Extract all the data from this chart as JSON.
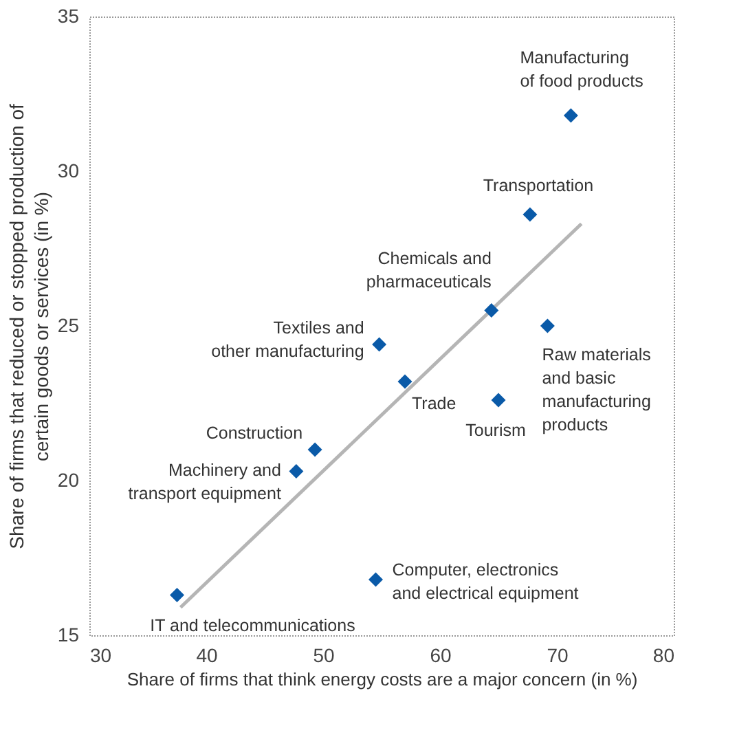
{
  "chart_data": {
    "type": "scatter",
    "xlabel": "Share of firms that think energy costs are a major concern (in %)",
    "ylabel": "Share of firms that reduced or stopped production of\ncertain goods or services (in %)",
    "xlim": [
      30,
      80
    ],
    "ylim": [
      15,
      35
    ],
    "xticks": [
      30,
      40,
      50,
      60,
      70,
      80
    ],
    "yticks": [
      15,
      20,
      25,
      30,
      35
    ],
    "grid": false,
    "series": [
      {
        "marker": "diamond",
        "color": "#0a5aa8",
        "x": [
          37.5,
          54.5,
          47.7,
          49.3,
          57.0,
          54.8,
          64.4,
          65.0,
          69.2,
          67.7,
          71.2
        ],
        "values": [
          16.3,
          16.8,
          20.3,
          21.0,
          23.2,
          24.4,
          25.5,
          22.6,
          25.0,
          28.6,
          31.8
        ]
      },
      {
        "type": "line",
        "line_style": "solid",
        "color": "#b5b5b5",
        "x": [
          37.8,
          72.1
        ],
        "values": [
          15.9,
          28.3
        ]
      }
    ],
    "annotations": [
      {
        "text": "IT and telecommunications",
        "x": 37.5,
        "y": 16.3
      },
      {
        "text": "Computer, electronics\nand electrical equipment",
        "x": 54.5,
        "y": 16.8
      },
      {
        "text": "Machinery and\ntransport equipment",
        "x": 47.7,
        "y": 20.3
      },
      {
        "text": "Construction",
        "x": 49.3,
        "y": 21.0
      },
      {
        "text": "Trade",
        "x": 57.0,
        "y": 23.2
      },
      {
        "text": "Textiles and\nother manufacturing",
        "x": 54.8,
        "y": 24.4
      },
      {
        "text": "Chemicals and\npharmaceuticals",
        "x": 64.4,
        "y": 25.5
      },
      {
        "text": "Tourism",
        "x": 65.0,
        "y": 22.6
      },
      {
        "text": "Raw materials\nand basic\nmanufacturing\nproducts",
        "x": 69.2,
        "y": 25.0
      },
      {
        "text": "Transportation",
        "x": 67.7,
        "y": 28.6
      },
      {
        "text": "Manufacturing\nof food products",
        "x": 71.2,
        "y": 31.8
      }
    ]
  }
}
